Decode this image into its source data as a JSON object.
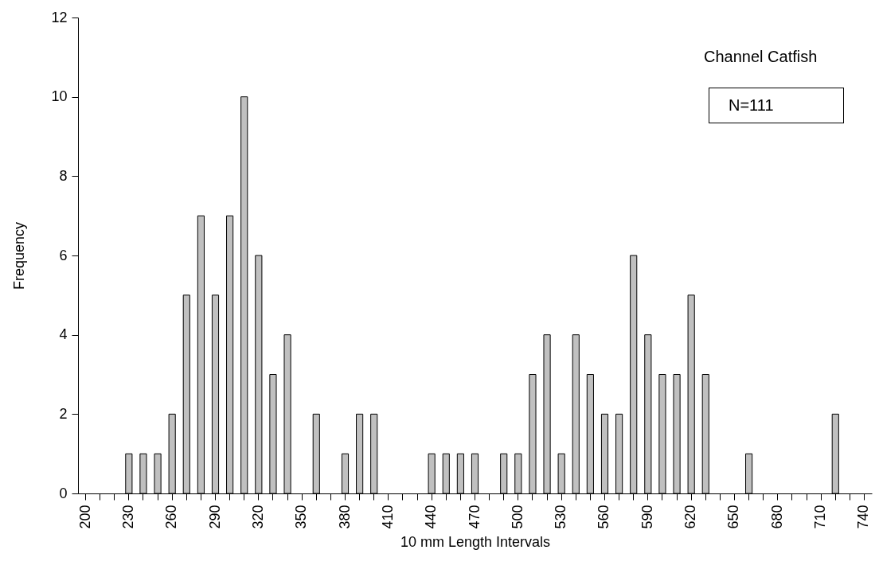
{
  "chart_data": {
    "type": "bar",
    "xlabel": "10 mm Length Intervals",
    "ylabel": "Frequency",
    "categories": [
      "200",
      null,
      null,
      "230",
      null,
      null,
      "260",
      null,
      null,
      "290",
      null,
      null,
      "320",
      null,
      null,
      "350",
      null,
      null,
      "380",
      null,
      null,
      "410",
      null,
      null,
      "440",
      null,
      null,
      "470",
      null,
      null,
      "500",
      null,
      null,
      "530",
      null,
      null,
      "560",
      null,
      null,
      "590",
      null,
      null,
      "620",
      null,
      null,
      "650",
      null,
      null,
      "680",
      null,
      null,
      "710",
      null,
      null,
      "740"
    ],
    "values": [
      0,
      0,
      0,
      1,
      1,
      1,
      2,
      5,
      7,
      5,
      7,
      10,
      6,
      3,
      4,
      0,
      2,
      0,
      1,
      2,
      2,
      0,
      0,
      0,
      1,
      1,
      1,
      1,
      0,
      1,
      1,
      3,
      4,
      1,
      4,
      3,
      2,
      2,
      6,
      4,
      3,
      3,
      5,
      3,
      0,
      0,
      1,
      0,
      0,
      0,
      0,
      0,
      2,
      0,
      0
    ],
    "color": "#c0c0c0",
    "ylim": [
      0,
      12
    ],
    "yticks": [
      0,
      2,
      4,
      6,
      8,
      10,
      12
    ],
    "grid": false,
    "annotations": [
      "Channel Catfish",
      "N=111"
    ]
  }
}
